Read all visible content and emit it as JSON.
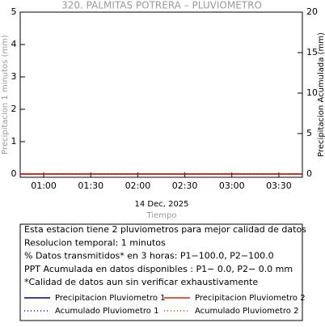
{
  "chart_data": {
    "type": "line",
    "title": "320. PALMITAS POTRERA – PLUVIOMETRO",
    "y_label": "Precipitacion 1 minutos (mm)",
    "y2_label": "Precipitacion Acumulada (mm)",
    "date_label": "14 Dec, 2025",
    "x_label": "Tiempo",
    "xlim": [
      45,
      225
    ],
    "xticks": [
      {
        "value": 60,
        "label": "01:00"
      },
      {
        "value": 90,
        "label": "01:30"
      },
      {
        "value": 120,
        "label": "02:00"
      },
      {
        "value": 150,
        "label": "02:30"
      },
      {
        "value": 180,
        "label": "03:00"
      },
      {
        "value": 210,
        "label": "03:30"
      }
    ],
    "ylim": [
      -0.1,
      5
    ],
    "yticks": [
      0,
      1,
      2,
      3,
      4,
      5
    ],
    "y2lim": [
      -0.4,
      20
    ],
    "y2ticks": [
      0,
      5,
      10,
      15,
      20
    ],
    "x": [
      45,
      225
    ],
    "series": [
      {
        "name": "Precipitacion Pluviometro 1",
        "color": "#00008b",
        "dash": false,
        "values": [
          0,
          0
        ]
      },
      {
        "name": "Precipitacion Pluviometro 2",
        "color": "#e02000",
        "dash": false,
        "values": [
          0,
          0
        ]
      },
      {
        "name": "Acumulado Pluviometro 1",
        "color": "#0000cd",
        "dash": true,
        "axis": "y2",
        "values": [
          0,
          0
        ]
      },
      {
        "name": "Acumulado Pluviometro 2",
        "color": "#e02000",
        "dash": true,
        "axis": "y2",
        "values": [
          0,
          0
        ]
      }
    ],
    "notes": [
      "Esta estacion tiene 2 pluviometros para mejor calidad de datos",
      "Resolucion temporal: 1 minutos",
      "% Datos transmitidos* en 3 horas: P1−100.0, P2−100.0",
      "PPT Acumulada en datos disponibles : P1−  0.0, P2−  0.0 mm",
      "*Calidad de datos aun sin verificar exhaustivamente"
    ]
  }
}
